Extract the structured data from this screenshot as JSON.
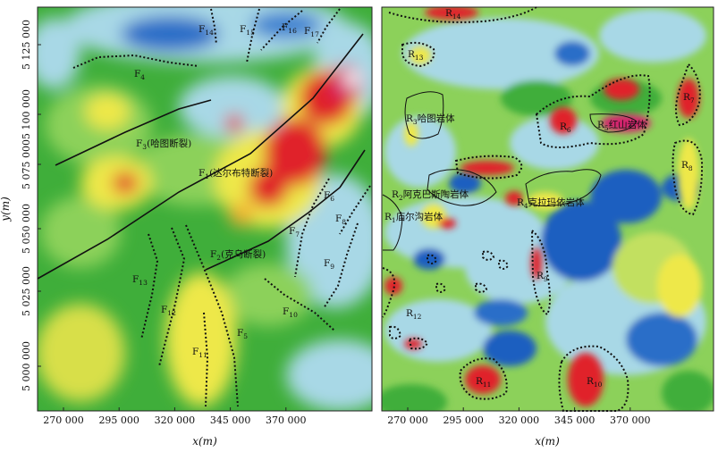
{
  "left_panel": {
    "x_ticks": [
      "270 000",
      "295 000",
      "320 000",
      "345 000",
      "370 000"
    ],
    "y_ticks": [
      "5 125 000",
      "5 100 000",
      "5 075 000",
      "5 050 000",
      "5 025 000",
      "5 000 000"
    ],
    "x_label": "x(m)",
    "y_label": "y(m)",
    "faults": [
      {
        "id": "F14",
        "base": "F",
        "sub": "14"
      },
      {
        "id": "F15",
        "base": "F",
        "sub": "15"
      },
      {
        "id": "F16",
        "base": "F",
        "sub": "16"
      },
      {
        "id": "F17",
        "base": "F",
        "sub": "17"
      },
      {
        "id": "F4",
        "base": "F",
        "sub": "4"
      },
      {
        "id": "F3",
        "base": "F",
        "sub": "3",
        "suffix": "(哈图断裂)"
      },
      {
        "id": "F1",
        "base": "F",
        "sub": "1",
        "suffix": "(达尔布特断裂)"
      },
      {
        "id": "F6",
        "base": "F",
        "sub": "6"
      },
      {
        "id": "F8",
        "base": "F",
        "sub": "8"
      },
      {
        "id": "F7",
        "base": "F",
        "sub": "7"
      },
      {
        "id": "F2",
        "base": "F",
        "sub": "2",
        "suffix": "(克乌断裂)"
      },
      {
        "id": "F9",
        "base": "F",
        "sub": "9"
      },
      {
        "id": "F13",
        "base": "F",
        "sub": "13"
      },
      {
        "id": "F12",
        "base": "F",
        "sub": "12"
      },
      {
        "id": "F10",
        "base": "F",
        "sub": "10"
      },
      {
        "id": "F5",
        "base": "F",
        "sub": "5"
      },
      {
        "id": "F11",
        "base": "F",
        "sub": "11"
      }
    ]
  },
  "right_panel": {
    "x_ticks": [
      "270 000",
      "295 000",
      "320 000",
      "345 000",
      "370 000"
    ],
    "x_label": "x(m)",
    "bodies": [
      {
        "id": "R14",
        "base": "R",
        "sub": "14"
      },
      {
        "id": "R13",
        "base": "R",
        "sub": "13"
      },
      {
        "id": "R7",
        "base": "R",
        "sub": "7"
      },
      {
        "id": "R3",
        "base": "R",
        "sub": "3",
        "suffix": "哈图岩体"
      },
      {
        "id": "R6",
        "base": "R",
        "sub": "6"
      },
      {
        "id": "R5",
        "base": "R",
        "sub": "5",
        "suffix": "红山岩体"
      },
      {
        "id": "R8",
        "base": "R",
        "sub": "8"
      },
      {
        "id": "R2",
        "base": "R",
        "sub": "2",
        "suffix": "阿克巴斯陶岩体"
      },
      {
        "id": "R4",
        "base": "R",
        "sub": "4",
        "suffix": "克拉玛依岩体"
      },
      {
        "id": "R1",
        "base": "R",
        "sub": "1",
        "suffix": "庙尔沟岩体"
      },
      {
        "id": "R9",
        "base": "R",
        "sub": "9"
      },
      {
        "id": "R12",
        "base": "R",
        "sub": "12"
      },
      {
        "id": "R11",
        "base": "R",
        "sub": "11"
      },
      {
        "id": "R10",
        "base": "R",
        "sub": "10"
      }
    ]
  },
  "colors": {
    "green": "#3fae3a",
    "light_green": "#8cd15a",
    "yellow": "#eee84a",
    "light_blue": "#a8d8e6",
    "blue": "#1d5ec0",
    "red": "#e0202a",
    "magenta": "#d4246e"
  }
}
